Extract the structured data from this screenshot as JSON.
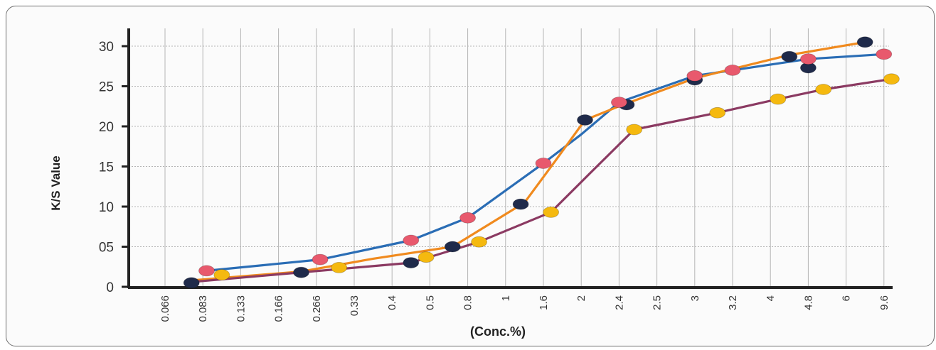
{
  "chart_data": {
    "type": "line",
    "title": "",
    "xlabel": "(Conc.%)",
    "ylabel": "K/S Value",
    "ylim": [
      0,
      32
    ],
    "y_ticks": [
      {
        "label": "0",
        "value": 0
      },
      {
        "label": "05",
        "value": 5
      },
      {
        "label": "10",
        "value": 10
      },
      {
        "label": "15",
        "value": 15
      },
      {
        "label": "20",
        "value": 20
      },
      {
        "label": "25",
        "value": 25
      },
      {
        "label": "30",
        "value": 30
      }
    ],
    "categories": [
      "0.066",
      "0.083",
      "0.133",
      "0.166",
      "0.266",
      "0.33",
      "0.4",
      "0.5",
      "0.8",
      "1",
      "1.6",
      "2",
      "2.4",
      "2.5",
      "3",
      "3.2",
      "4",
      "4.8",
      "6",
      "9.6"
    ],
    "x_scale": "categorical (positions indexed by category)",
    "grid": true,
    "legend": "none",
    "series": [
      {
        "color": "#2a6db5",
        "marker_color": "#1f2a4a",
        "points": [
          {
            "x": 0.7,
            "y": 0.5
          },
          {
            "x": 3.6,
            "y": 1.8
          },
          {
            "x": 6.5,
            "y": 3.0
          },
          {
            "x": 7.6,
            "y": 5.0
          },
          {
            "x": 9.4,
            "y": 10.3
          },
          {
            "x": 11.1,
            "y": 20.8
          },
          {
            "x": 12.2,
            "y": 22.7
          },
          {
            "x": 14.0,
            "y": 25.8
          },
          {
            "x": 16.5,
            "y": 28.7
          },
          {
            "x": 17.0,
            "y": 27.3
          },
          {
            "x": 18.5,
            "y": 30.5
          }
        ],
        "line": [
          {
            "x": 1.1,
            "y": 2.0
          },
          {
            "x": 4.1,
            "y": 3.4
          },
          {
            "x": 6.5,
            "y": 5.8
          },
          {
            "x": 8.0,
            "y": 8.6
          },
          {
            "x": 10.0,
            "y": 15.4
          },
          {
            "x": 11.0,
            "y": 19.0
          },
          {
            "x": 12.0,
            "y": 23.0
          },
          {
            "x": 14.0,
            "y": 26.3
          },
          {
            "x": 15.0,
            "y": 27.0
          },
          {
            "x": 17.0,
            "y": 28.4
          },
          {
            "x": 19.0,
            "y": 29.0
          }
        ]
      },
      {
        "color": "#f08a1e",
        "marker_color": "#e8596d",
        "points": [
          {
            "x": 1.1,
            "y": 2.0
          },
          {
            "x": 4.1,
            "y": 3.4
          },
          {
            "x": 6.5,
            "y": 5.8
          },
          {
            "x": 8.0,
            "y": 8.6
          },
          {
            "x": 10.0,
            "y": 15.4
          },
          {
            "x": 12.0,
            "y": 23.0
          },
          {
            "x": 14.0,
            "y": 26.3
          },
          {
            "x": 15.0,
            "y": 27.0
          },
          {
            "x": 17.0,
            "y": 28.4
          },
          {
            "x": 19.0,
            "y": 29.0
          }
        ],
        "line": [
          {
            "x": 0.7,
            "y": 0.8
          },
          {
            "x": 3.6,
            "y": 1.9
          },
          {
            "x": 5.5,
            "y": 3.5
          },
          {
            "x": 7.6,
            "y": 5.0
          },
          {
            "x": 9.5,
            "y": 10.5
          },
          {
            "x": 10.3,
            "y": 15.6
          },
          {
            "x": 11.1,
            "y": 20.8
          },
          {
            "x": 12.0,
            "y": 22.5
          },
          {
            "x": 14.0,
            "y": 26.0
          },
          {
            "x": 16.5,
            "y": 28.9
          },
          {
            "x": 18.5,
            "y": 30.5
          }
        ]
      },
      {
        "color": "#8b3a62",
        "marker_color": "#f5b90f",
        "points": [
          {
            "x": 1.5,
            "y": 1.5
          },
          {
            "x": 4.6,
            "y": 2.4
          },
          {
            "x": 6.9,
            "y": 3.7
          },
          {
            "x": 8.3,
            "y": 5.6
          },
          {
            "x": 10.2,
            "y": 9.3
          },
          {
            "x": 12.4,
            "y": 19.6
          },
          {
            "x": 14.6,
            "y": 21.7
          },
          {
            "x": 16.2,
            "y": 23.4
          },
          {
            "x": 17.4,
            "y": 24.6
          },
          {
            "x": 19.2,
            "y": 25.9
          }
        ],
        "line": [
          {
            "x": 0.7,
            "y": 0.6
          },
          {
            "x": 3.6,
            "y": 1.8
          },
          {
            "x": 6.5,
            "y": 3.0
          },
          {
            "x": 8.3,
            "y": 5.6
          },
          {
            "x": 10.2,
            "y": 9.3
          },
          {
            "x": 11.2,
            "y": 14.0
          },
          {
            "x": 12.4,
            "y": 19.6
          },
          {
            "x": 14.6,
            "y": 21.7
          },
          {
            "x": 16.2,
            "y": 23.4
          },
          {
            "x": 17.4,
            "y": 24.6
          },
          {
            "x": 19.2,
            "y": 25.9
          }
        ]
      }
    ]
  }
}
